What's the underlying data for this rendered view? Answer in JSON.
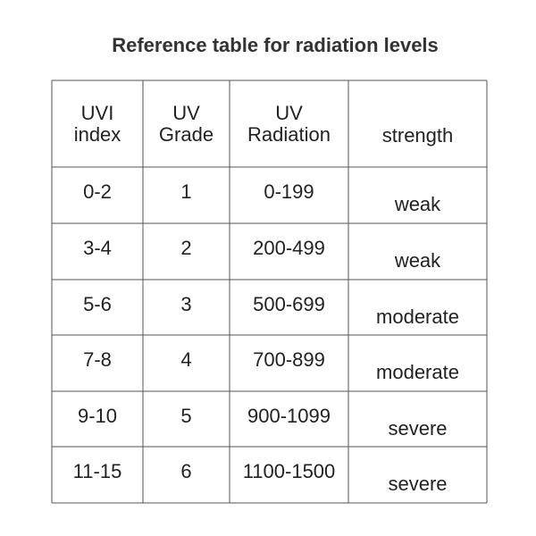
{
  "title": "Reference table for radiation levels",
  "table": {
    "header": [
      [
        "UVI",
        "index"
      ],
      [
        "UV",
        "Grade"
      ],
      [
        "UV",
        "Radiation"
      ],
      [
        "strength"
      ]
    ],
    "rows": [
      [
        "0-2",
        "1",
        "0-199",
        "weak"
      ],
      [
        "3-4",
        "2",
        "200-499",
        "weak"
      ],
      [
        "5-6",
        "3",
        "500-699",
        "moderate"
      ],
      [
        "7-8",
        "4",
        "700-899",
        "moderate"
      ],
      [
        "9-10",
        "5",
        "900-1099",
        "severe"
      ],
      [
        "11-15",
        "6",
        "1100-1500",
        "severe"
      ]
    ]
  }
}
